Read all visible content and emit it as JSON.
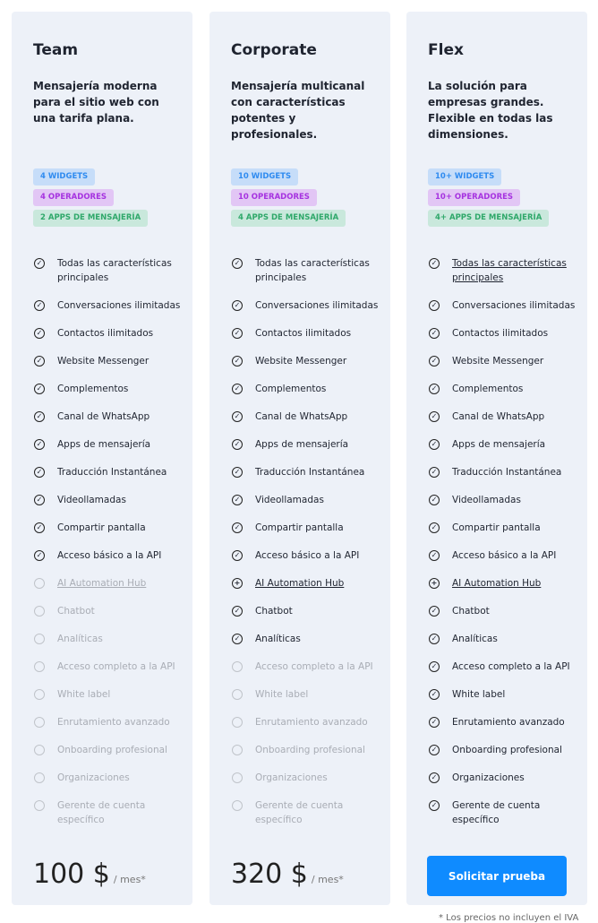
{
  "plans": [
    {
      "name": "Team",
      "description": "Mensajería moderna para el sitio web con una tarifa plana.",
      "badges": [
        "4 WIDGETS",
        "4 OPERADORES",
        "2 APPS DE MENSAJERÍA"
      ],
      "price": "100 $",
      "period": "/ mes*",
      "states": [
        "check",
        "check",
        "check",
        "check",
        "check",
        "check",
        "check",
        "check",
        "check",
        "check",
        "check",
        "off",
        "off",
        "off",
        "off",
        "off",
        "off",
        "off",
        "off",
        "off"
      ],
      "links": [
        11
      ]
    },
    {
      "name": "Corporate",
      "description": "Mensajería multicanal con características potentes y profesionales.",
      "badges": [
        "10 WIDGETS",
        "10 OPERADORES",
        "4 APPS DE MENSAJERÍA"
      ],
      "price": "320 $",
      "period": "/ mes*",
      "states": [
        "check",
        "check",
        "check",
        "check",
        "check",
        "check",
        "check",
        "check",
        "check",
        "check",
        "check",
        "plus",
        "check",
        "check",
        "off",
        "off",
        "off",
        "off",
        "off",
        "off"
      ],
      "links": [
        11
      ]
    },
    {
      "name": "Flex",
      "description": "La solución para empresas grandes. Flexible en todas las dimensiones.",
      "badges": [
        "10+ WIDGETS",
        "10+ OPERADORES",
        "4+ APPS DE MENSAJERÍA"
      ],
      "cta": "Solicitar prueba",
      "states": [
        "check",
        "check",
        "check",
        "check",
        "check",
        "check",
        "check",
        "check",
        "check",
        "check",
        "check",
        "plus",
        "check",
        "check",
        "check",
        "check",
        "check",
        "check",
        "check",
        "check"
      ],
      "links": [
        0,
        11
      ]
    }
  ],
  "features": [
    "Todas las características principales",
    "Conversaciones ilimitadas",
    "Contactos ilimitados",
    "Website Messenger",
    "Complementos",
    "Canal de WhatsApp",
    "Apps de mensajería",
    "Traducción Instantánea",
    "Videollamadas",
    "Compartir pantalla",
    "Acceso básico a la API",
    "AI Automation Hub",
    "Chatbot",
    "Analíticas",
    "Acceso completo a la API",
    "White label",
    "Enrutamiento avanzado",
    "Onboarding profesional",
    "Organizaciones",
    "Gerente de cuenta específico"
  ],
  "footnote": "* Los precios no incluyen el IVA"
}
